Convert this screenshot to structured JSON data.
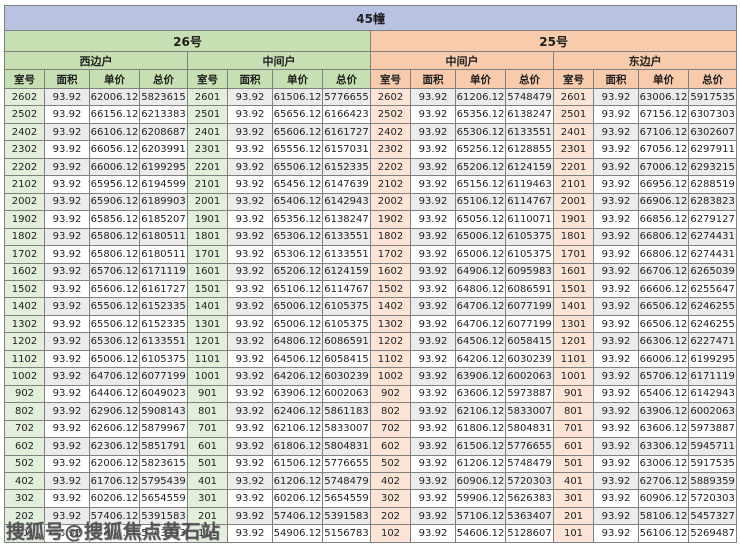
{
  "title": "45幢",
  "watermark": "搜狐号@搜狐焦点黄石站",
  "colors": {
    "title_bar": "#b7c3e1",
    "green": "#c6e0b4",
    "green_light": "#e2efda",
    "orange": "#f8cbad",
    "orange_light": "#fce4d6",
    "stripe": "#ececec",
    "border": "#808080"
  },
  "buildings": [
    {
      "name": "26号"
    },
    {
      "name": "25号"
    }
  ],
  "column_headers": [
    "室号",
    "面积",
    "单价",
    "总价"
  ],
  "sections": [
    {
      "id": "26-west",
      "building": "26号",
      "unit_label": "西边户",
      "rows": [
        [
          "2602",
          "93.92",
          "62006.12",
          "5823615"
        ],
        [
          "2502",
          "93.92",
          "66156.12",
          "6213383"
        ],
        [
          "2402",
          "93.92",
          "66106.12",
          "6208687"
        ],
        [
          "2302",
          "93.92",
          "66056.12",
          "6203991"
        ],
        [
          "2202",
          "93.92",
          "66006.12",
          "6199295"
        ],
        [
          "2102",
          "93.92",
          "65956.12",
          "6194599"
        ],
        [
          "2002",
          "93.92",
          "65906.12",
          "6189903"
        ],
        [
          "1902",
          "93.92",
          "65856.12",
          "6185207"
        ],
        [
          "1802",
          "93.92",
          "65806.12",
          "6180511"
        ],
        [
          "1702",
          "93.92",
          "65806.12",
          "6180511"
        ],
        [
          "1602",
          "93.92",
          "65706.12",
          "6171119"
        ],
        [
          "1502",
          "93.92",
          "65606.12",
          "6161727"
        ],
        [
          "1402",
          "93.92",
          "65506.12",
          "6152335"
        ],
        [
          "1302",
          "93.92",
          "65506.12",
          "6152335"
        ],
        [
          "1202",
          "93.92",
          "65306.12",
          "6133551"
        ],
        [
          "1102",
          "93.92",
          "65006.12",
          "6105375"
        ],
        [
          "1002",
          "93.92",
          "64706.12",
          "6077199"
        ],
        [
          "902",
          "93.92",
          "64406.12",
          "6049023"
        ],
        [
          "802",
          "93.92",
          "62906.12",
          "5908143"
        ],
        [
          "702",
          "93.92",
          "62606.12",
          "5879967"
        ],
        [
          "602",
          "93.92",
          "62306.12",
          "5851791"
        ],
        [
          "502",
          "93.92",
          "62006.12",
          "5823615"
        ],
        [
          "402",
          "93.92",
          "61706.12",
          "5795439"
        ],
        [
          "302",
          "93.92",
          "60206.12",
          "5654559"
        ],
        [
          "202",
          "93.92",
          "57406.12",
          "5391583"
        ],
        [
          "102",
          "93.92",
          "55406.12",
          "5203743"
        ]
      ]
    },
    {
      "id": "26-middle",
      "building": "26号",
      "unit_label": "中间户",
      "rows": [
        [
          "2601",
          "93.92",
          "61506.12",
          "5776655"
        ],
        [
          "2501",
          "93.92",
          "65656.12",
          "6166423"
        ],
        [
          "2401",
          "93.92",
          "65606.12",
          "6161727"
        ],
        [
          "2301",
          "93.92",
          "65556.12",
          "6157031"
        ],
        [
          "2201",
          "93.92",
          "65506.12",
          "6152335"
        ],
        [
          "2101",
          "93.92",
          "65456.12",
          "6147639"
        ],
        [
          "2001",
          "93.92",
          "65406.12",
          "6142943"
        ],
        [
          "1901",
          "93.92",
          "65356.12",
          "6138247"
        ],
        [
          "1801",
          "93.92",
          "65306.12",
          "6133551"
        ],
        [
          "1701",
          "93.92",
          "65306.12",
          "6133551"
        ],
        [
          "1601",
          "93.92",
          "65206.12",
          "6124159"
        ],
        [
          "1501",
          "93.92",
          "65106.12",
          "6114767"
        ],
        [
          "1401",
          "93.92",
          "65006.12",
          "6105375"
        ],
        [
          "1301",
          "93.92",
          "65006.12",
          "6105375"
        ],
        [
          "1201",
          "93.92",
          "64806.12",
          "6086591"
        ],
        [
          "1101",
          "93.92",
          "64506.12",
          "6058415"
        ],
        [
          "1001",
          "93.92",
          "64206.12",
          "6030239"
        ],
        [
          "901",
          "93.92",
          "63906.12",
          "6002063"
        ],
        [
          "801",
          "93.92",
          "62406.12",
          "5861183"
        ],
        [
          "701",
          "93.92",
          "62106.12",
          "5833007"
        ],
        [
          "601",
          "93.92",
          "61806.12",
          "5804831"
        ],
        [
          "501",
          "93.92",
          "61506.12",
          "5776655"
        ],
        [
          "401",
          "93.92",
          "61206.12",
          "5748479"
        ],
        [
          "301",
          "93.92",
          "60206.12",
          "5654559"
        ],
        [
          "201",
          "93.92",
          "57406.12",
          "5391583"
        ],
        [
          "101",
          "93.92",
          "54906.12",
          "5156783"
        ]
      ]
    },
    {
      "id": "25-middle",
      "building": "25号",
      "unit_label": "中间户",
      "rows": [
        [
          "2602",
          "93.92",
          "61206.12",
          "5748479"
        ],
        [
          "2502",
          "93.92",
          "65356.12",
          "6138247"
        ],
        [
          "2402",
          "93.92",
          "65306.12",
          "6133551"
        ],
        [
          "2302",
          "93.92",
          "65256.12",
          "6128855"
        ],
        [
          "2202",
          "93.92",
          "65206.12",
          "6124159"
        ],
        [
          "2102",
          "93.92",
          "65156.12",
          "6119463"
        ],
        [
          "2002",
          "93.92",
          "65106.12",
          "6114767"
        ],
        [
          "1902",
          "93.92",
          "65056.12",
          "6110071"
        ],
        [
          "1802",
          "93.92",
          "65006.12",
          "6105375"
        ],
        [
          "1702",
          "93.92",
          "65006.12",
          "6105375"
        ],
        [
          "1602",
          "93.92",
          "64906.12",
          "6095983"
        ],
        [
          "1502",
          "93.92",
          "64806.12",
          "6086591"
        ],
        [
          "1402",
          "93.92",
          "64706.12",
          "6077199"
        ],
        [
          "1302",
          "93.92",
          "64706.12",
          "6077199"
        ],
        [
          "1202",
          "93.92",
          "64506.12",
          "6058415"
        ],
        [
          "1102",
          "93.92",
          "64206.12",
          "6030239"
        ],
        [
          "1002",
          "93.92",
          "63906.12",
          "6002063"
        ],
        [
          "902",
          "93.92",
          "63606.12",
          "5973887"
        ],
        [
          "802",
          "93.92",
          "62106.12",
          "5833007"
        ],
        [
          "702",
          "93.92",
          "61806.12",
          "5804831"
        ],
        [
          "602",
          "93.92",
          "61506.12",
          "5776655"
        ],
        [
          "502",
          "93.92",
          "61206.12",
          "5748479"
        ],
        [
          "402",
          "93.92",
          "60906.12",
          "5720303"
        ],
        [
          "302",
          "93.92",
          "59906.12",
          "5626383"
        ],
        [
          "202",
          "93.92",
          "57106.12",
          "5363407"
        ],
        [
          "102",
          "93.92",
          "54606.12",
          "5128607"
        ]
      ]
    },
    {
      "id": "25-east",
      "building": "25号",
      "unit_label": "东边户",
      "rows": [
        [
          "2601",
          "93.92",
          "63006.12",
          "5917535"
        ],
        [
          "2501",
          "93.92",
          "67156.12",
          "6307303"
        ],
        [
          "2401",
          "93.92",
          "67106.12",
          "6302607"
        ],
        [
          "2301",
          "93.92",
          "67056.12",
          "6297911"
        ],
        [
          "2201",
          "93.92",
          "67006.12",
          "6293215"
        ],
        [
          "2101",
          "93.92",
          "66956.12",
          "6288519"
        ],
        [
          "2001",
          "93.92",
          "66906.12",
          "6283823"
        ],
        [
          "1901",
          "93.92",
          "66856.12",
          "6279127"
        ],
        [
          "1801",
          "93.92",
          "66806.12",
          "6274431"
        ],
        [
          "1701",
          "93.92",
          "66806.12",
          "6274431"
        ],
        [
          "1601",
          "93.92",
          "66706.12",
          "6265039"
        ],
        [
          "1501",
          "93.92",
          "66606.12",
          "6255647"
        ],
        [
          "1401",
          "93.92",
          "66506.12",
          "6246255"
        ],
        [
          "1301",
          "93.92",
          "66506.12",
          "6246255"
        ],
        [
          "1201",
          "93.92",
          "66306.12",
          "6227471"
        ],
        [
          "1101",
          "93.92",
          "66006.12",
          "6199295"
        ],
        [
          "1001",
          "93.92",
          "65706.12",
          "6171119"
        ],
        [
          "901",
          "93.92",
          "65406.12",
          "6142943"
        ],
        [
          "801",
          "93.92",
          "63906.12",
          "6002063"
        ],
        [
          "701",
          "93.92",
          "63606.12",
          "5973887"
        ],
        [
          "601",
          "93.92",
          "63306.12",
          "5945711"
        ],
        [
          "501",
          "93.92",
          "63006.12",
          "5917535"
        ],
        [
          "401",
          "93.92",
          "62706.12",
          "5889359"
        ],
        [
          "301",
          "93.92",
          "60906.12",
          "5720303"
        ],
        [
          "201",
          "93.92",
          "58106.12",
          "5457327"
        ],
        [
          "101",
          "93.92",
          "56106.12",
          "5269487"
        ]
      ]
    }
  ]
}
